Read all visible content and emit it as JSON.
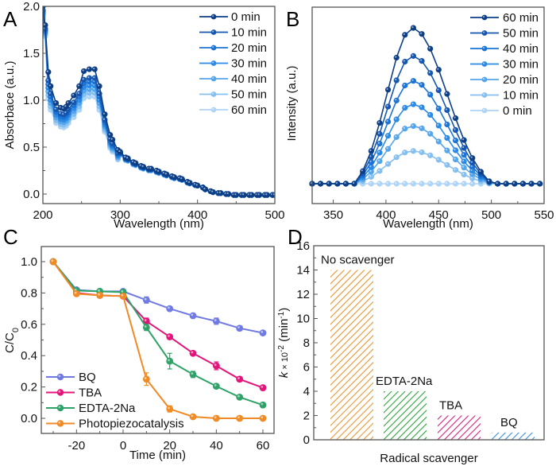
{
  "chart_data": [
    {
      "panel": "A",
      "type": "line",
      "xlabel": "Wavelength (nm)",
      "ylabel": "Absorbace (a.u.)",
      "xlim": [
        200,
        500
      ],
      "ylim": [
        -0.07,
        2.0
      ],
      "xticks": [
        200,
        300,
        400,
        500
      ],
      "xtick_labels": [
        "200",
        "300",
        "400",
        "500"
      ],
      "yticks": [
        0.0,
        0.5,
        1.0,
        1.5,
        2.0
      ],
      "ytick_labels": [
        "0.0",
        "0.5",
        "1.0",
        "1.5",
        "2.0"
      ],
      "legend_position": "top-right",
      "x": [
        200,
        203,
        207,
        210,
        217,
        223,
        227,
        230,
        233,
        240,
        247,
        253,
        260,
        267,
        273,
        280,
        287,
        290,
        297,
        300,
        307,
        310,
        317,
        320,
        327,
        330,
        337,
        340,
        347,
        350,
        357,
        360,
        367,
        370,
        377,
        380,
        387,
        390,
        397,
        400,
        407,
        410,
        417,
        420,
        427,
        430,
        437,
        440,
        447,
        450,
        457,
        460,
        467,
        470,
        477,
        480,
        487,
        490,
        497,
        500
      ],
      "series": [
        {
          "name": "0 min",
          "color": "#0d3f87",
          "scale": 1.0
        },
        {
          "name": "10 min",
          "color": "#1557b0",
          "scale": 0.93
        },
        {
          "name": "20 min",
          "color": "#1b74d6",
          "scale": 0.9
        },
        {
          "name": "30 min",
          "color": "#2a8ae6",
          "scale": 0.87
        },
        {
          "name": "40 min",
          "color": "#55a5ea",
          "scale": 0.84
        },
        {
          "name": "50 min",
          "color": "#85bff0",
          "scale": 0.81
        },
        {
          "name": "60 min",
          "color": "#aed4f6",
          "scale": 0.78
        }
      ],
      "base_values": [
        2.0,
        1.8,
        1.3,
        1.15,
        0.97,
        0.92,
        0.91,
        0.93,
        0.97,
        1.05,
        1.15,
        1.31,
        1.33,
        1.33,
        1.15,
        0.85,
        0.63,
        0.58,
        0.47,
        0.45,
        0.39,
        0.38,
        0.34,
        0.33,
        0.3,
        0.29,
        0.27,
        0.27,
        0.25,
        0.24,
        0.22,
        0.21,
        0.19,
        0.18,
        0.17,
        0.16,
        0.13,
        0.12,
        0.1,
        0.09,
        0.07,
        0.05,
        0.03,
        0.02,
        0.01,
        0.01,
        0.0,
        0.0,
        -0.01,
        -0.01,
        -0.01,
        -0.01,
        -0.01,
        -0.01,
        -0.01,
        -0.01,
        -0.01,
        -0.01,
        -0.01,
        -0.01
      ]
    },
    {
      "panel": "B",
      "type": "line",
      "xlabel": "Wavelength (nm)",
      "ylabel": "Intensity (a.u.)",
      "xlim": [
        330,
        550
      ],
      "ylim": [
        -0.13,
        1.1
      ],
      "xticks": [
        350,
        400,
        450,
        500,
        550
      ],
      "xtick_labels": [
        "350",
        "400",
        "450",
        "500",
        "550"
      ],
      "yticks": [],
      "legend_position": "top-right",
      "peak_wavelength": 425,
      "series": [
        {
          "name": "60 min",
          "color": "#0d3f87",
          "peak": 1.0
        },
        {
          "name": "50 min",
          "color": "#1557b0",
          "peak": 0.82
        },
        {
          "name": "40 min",
          "color": "#1b74d6",
          "peak": 0.66
        },
        {
          "name": "30 min",
          "color": "#2a8ae6",
          "peak": 0.51
        },
        {
          "name": "20 min",
          "color": "#55a5ea",
          "peak": 0.37
        },
        {
          "name": "10 min",
          "color": "#85bff0",
          "peak": 0.21
        },
        {
          "name": "0 min",
          "color": "#aed4f6",
          "peak": 0.0
        }
      ]
    },
    {
      "panel": "C",
      "type": "line",
      "xlabel": "Time (min)",
      "ylabel": "C/C",
      "ylabel_sub": "0",
      "xlim": [
        -33,
        63
      ],
      "ylim": [
        -0.1,
        1.12
      ],
      "xticks": [
        -20,
        0,
        20,
        40,
        60
      ],
      "xtick_labels": [
        "-20",
        "0",
        "20",
        "40",
        "60"
      ],
      "yticks": [
        0.0,
        0.2,
        0.4,
        0.6,
        0.8,
        1.0
      ],
      "ytick_labels": [
        "0.0",
        "0.2",
        "0.4",
        "0.6",
        "0.8",
        "1.0"
      ],
      "legend_position": "bottom-left",
      "x": [
        -30,
        -20,
        -10,
        0,
        10,
        20,
        30,
        40,
        50,
        60
      ],
      "series": [
        {
          "name": "BQ",
          "color": "#6f7ae3",
          "values": [
            1.0,
            0.82,
            0.81,
            0.81,
            0.755,
            0.7,
            0.655,
            0.62,
            0.575,
            0.545
          ],
          "errors": [
            0,
            0,
            0,
            0,
            0.02,
            0.01,
            0.015,
            0.02,
            0.015,
            0.01
          ]
        },
        {
          "name": "TBA",
          "color": "#e3157b",
          "values": [
            1.0,
            0.8,
            0.785,
            0.78,
            0.62,
            0.52,
            0.415,
            0.335,
            0.25,
            0.195
          ],
          "errors": [
            0,
            0,
            0,
            0,
            0.02,
            0.015,
            0.01,
            0.025,
            0.015,
            0.015
          ]
        },
        {
          "name": "EDTA-2Na",
          "color": "#2fa268",
          "values": [
            1.0,
            0.815,
            0.81,
            0.805,
            0.58,
            0.365,
            0.28,
            0.205,
            0.135,
            0.085
          ],
          "errors": [
            0,
            0,
            0,
            0,
            0.02,
            0.05,
            0.02,
            0.015,
            0.01,
            0.015
          ]
        },
        {
          "name": "Photopiezocatalysis",
          "color": "#ef8a24",
          "values": [
            1.0,
            0.795,
            0.785,
            0.78,
            0.25,
            0.06,
            0.01,
            0.0,
            0.0,
            0.0
          ],
          "errors": [
            0,
            0,
            0,
            0,
            0.04,
            0.02,
            0,
            0,
            0,
            0
          ]
        }
      ]
    },
    {
      "panel": "D",
      "type": "bar",
      "xlabel": "Radical scavenger",
      "ylabel_k": "k",
      "ylabel_rest": " × 10",
      "ylabel_exp": "-2",
      "ylabel_unit": " (min",
      "ylabel_unit_exp": "-1",
      "ylabel_close": ")",
      "ylim": [
        0,
        16
      ],
      "yticks": [
        0,
        2,
        4,
        6,
        8,
        10,
        12,
        14,
        16
      ],
      "ytick_labels": [
        "0",
        "2",
        "4",
        "6",
        "8",
        "10",
        "12",
        "14",
        "16"
      ],
      "categories": [
        "No scavenger",
        "EDTA-2Na",
        "TBA",
        "BQ"
      ],
      "values": [
        14.0,
        4.0,
        2.0,
        0.6
      ],
      "colors": [
        "#e8952f",
        "#2ba33a",
        "#d6257f",
        "#3a8fe0"
      ],
      "hatch": "diagonal"
    }
  ],
  "panel_letters": [
    "A",
    "B",
    "C",
    "D"
  ]
}
